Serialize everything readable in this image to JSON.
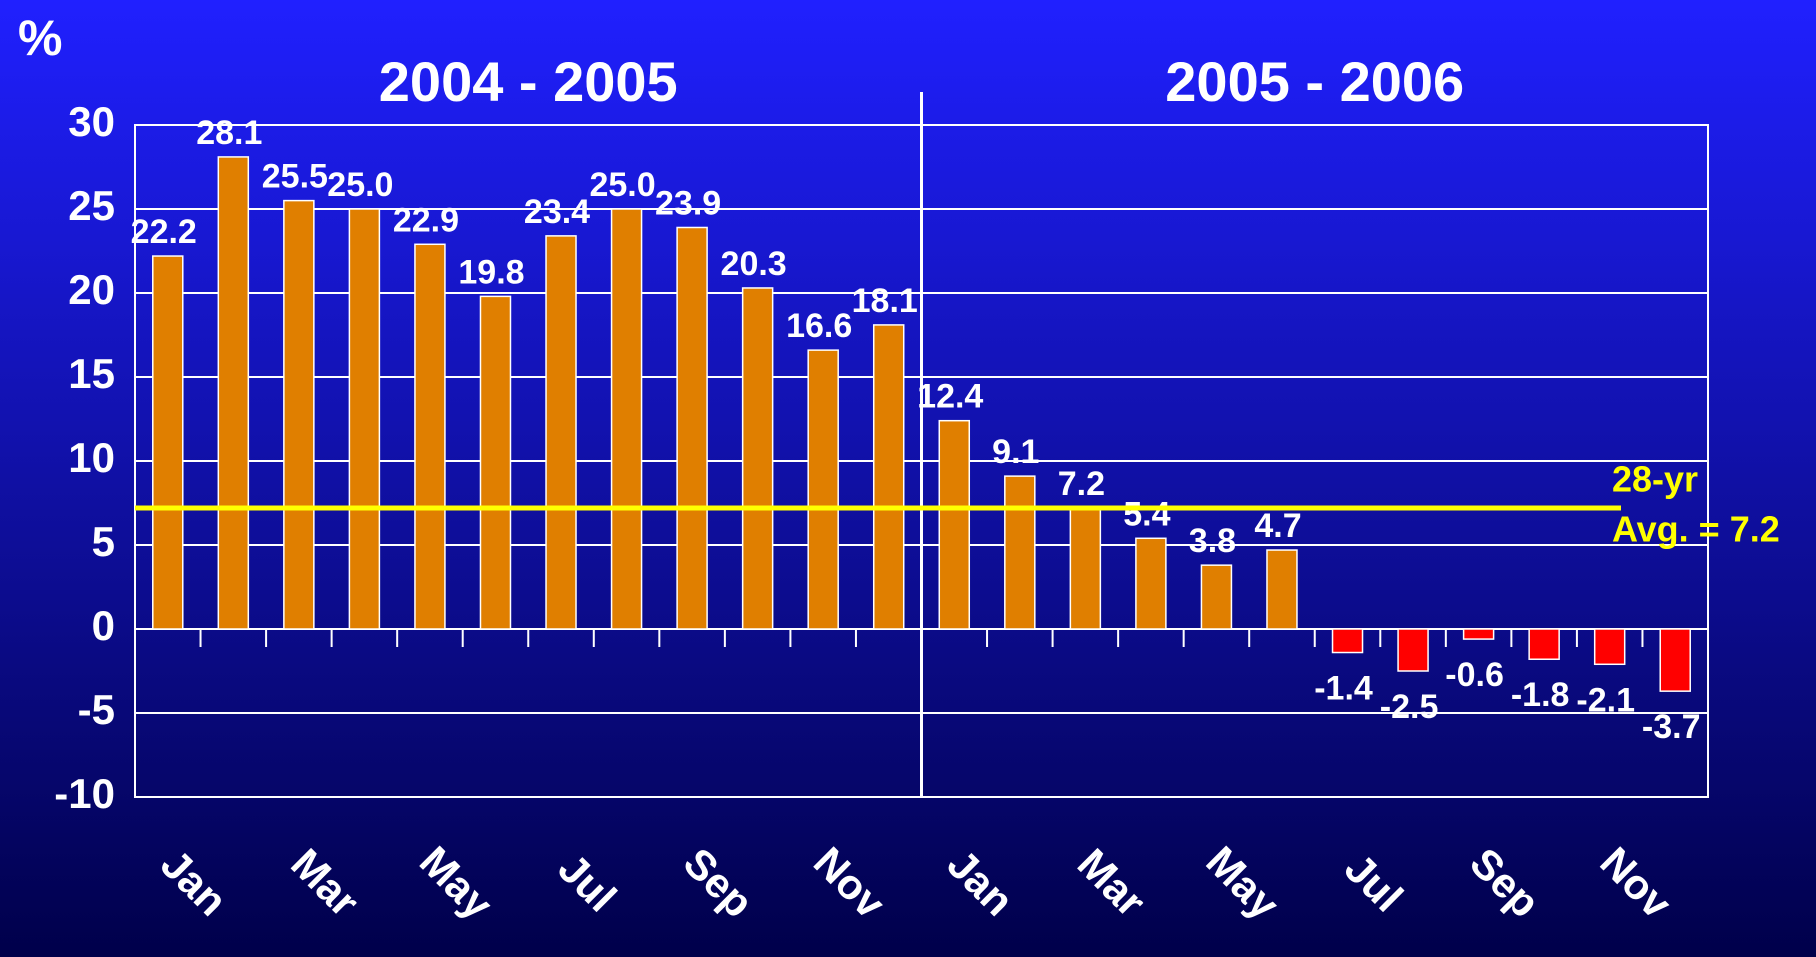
{
  "chart_data": {
    "type": "bar",
    "y_label": "%",
    "groups": [
      {
        "label": "2004 - 2005",
        "count": 12
      },
      {
        "label": "2005 - 2006",
        "count": 12
      }
    ],
    "categories": [
      "Jan",
      null,
      "Mar",
      null,
      "May",
      null,
      "Jul",
      null,
      "Sep",
      null,
      "Nov",
      null,
      "Jan",
      null,
      "Mar",
      null,
      "May",
      null,
      "Jul",
      null,
      "Sep",
      null,
      "Nov",
      null
    ],
    "values": [
      22.2,
      28.1,
      25.5,
      25.0,
      22.9,
      19.8,
      23.4,
      25.0,
      23.9,
      20.3,
      16.6,
      18.1,
      12.4,
      9.1,
      7.2,
      5.4,
      3.8,
      4.7,
      -1.4,
      -2.5,
      -0.6,
      -1.8,
      -2.1,
      -3.7
    ],
    "value_labels": [
      "22.2",
      "28.1",
      "25.5",
      "25.0",
      "22.9",
      "19.8",
      "23.4",
      "25.0",
      "23.9",
      "20.3",
      "16.6",
      "18.1",
      "12.4",
      "9.1",
      "7.2",
      "5.4",
      "3.8",
      "4.7",
      "-1.4",
      "-2.5",
      "-0.6",
      "-1.8",
      "-2.1",
      "-3.7"
    ],
    "color": "#e07f00",
    "negative_color": "#ff0000",
    "ylim": [
      -10,
      30
    ],
    "yticks": [
      -10,
      -5,
      0,
      5,
      10,
      15,
      20,
      25,
      30
    ],
    "grid": true,
    "reference_line": {
      "value": 7.2,
      "label": [
        "28-yr",
        "Avg. = 7.2"
      ],
      "color": "#ffff00"
    }
  }
}
